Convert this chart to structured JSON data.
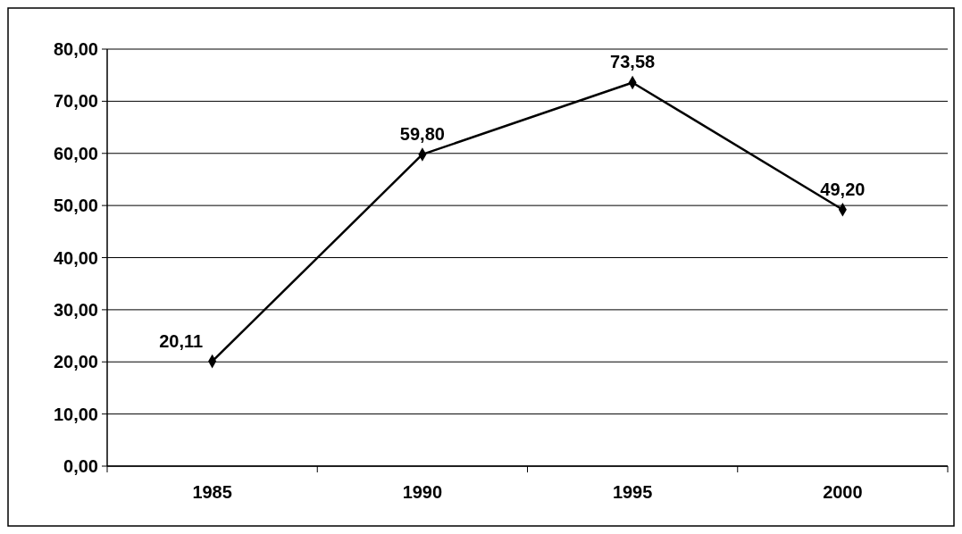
{
  "chart_data": {
    "type": "line",
    "categories": [
      "1985",
      "1990",
      "1995",
      "2000"
    ],
    "series": [
      {
        "color": "#000000",
        "values": [
          20.11,
          59.8,
          73.58,
          49.2
        ],
        "value_labels": [
          "20,11",
          "59,80",
          "73,58",
          "49,20"
        ]
      }
    ],
    "ylim": [
      0,
      80
    ],
    "yticks": [
      {
        "value": 0,
        "label": "0,00"
      },
      {
        "value": 10,
        "label": "10,00"
      },
      {
        "value": 20,
        "label": "20,00"
      },
      {
        "value": 30,
        "label": "30,00"
      },
      {
        "value": 40,
        "label": "40,00"
      },
      {
        "value": 50,
        "label": "50,00"
      },
      {
        "value": 60,
        "label": "60,00"
      },
      {
        "value": 70,
        "label": "70,00"
      },
      {
        "value": 80,
        "label": "80,00"
      }
    ],
    "grid": "y",
    "marker": "diamond",
    "line_style": "solid"
  }
}
